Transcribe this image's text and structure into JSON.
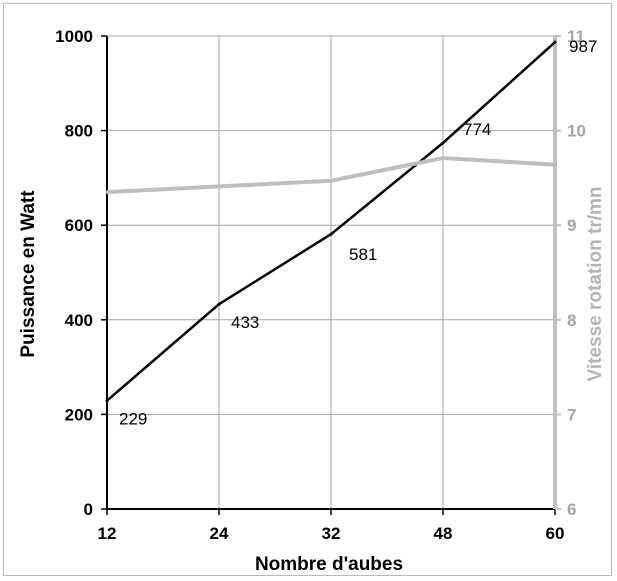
{
  "chart_data": {
    "type": "line",
    "categories": [
      "12",
      "24",
      "32",
      "48",
      "60"
    ],
    "xlabel": "Nombre d'aubes",
    "ylabel": "Puissance en Watt",
    "y2label": "Vitesse rotation tr/mn",
    "ylim": [
      0,
      1000
    ],
    "y2lim": [
      6,
      11
    ],
    "yticks": [
      "0",
      "200",
      "400",
      "600",
      "800",
      "1000"
    ],
    "y2ticks": [
      "6",
      "7",
      "8",
      "9",
      "10",
      "11"
    ],
    "grid": true,
    "series": [
      {
        "axis": "left",
        "color": "#000000",
        "values": [
          229,
          433,
          581,
          774,
          987
        ],
        "labels": [
          "229",
          "433",
          "581",
          "774",
          "987"
        ]
      },
      {
        "axis": "right",
        "color": "#bfbfbf",
        "values": [
          9.35,
          9.41,
          9.47,
          9.71,
          9.64
        ]
      }
    ]
  }
}
